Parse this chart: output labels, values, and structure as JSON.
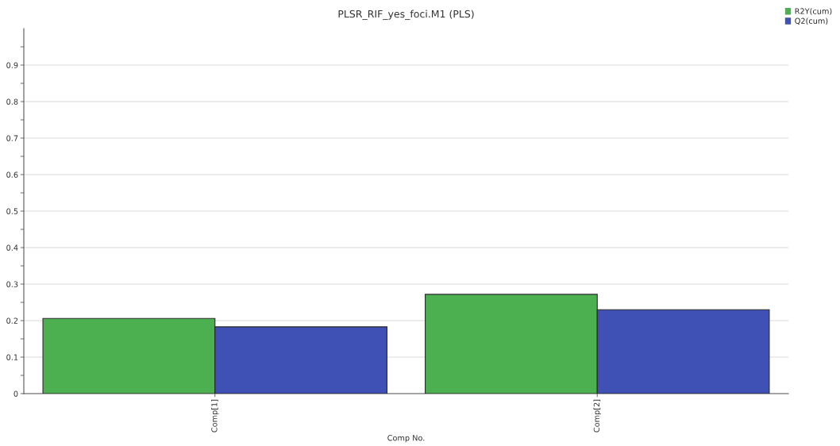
{
  "chart_data": {
    "type": "bar",
    "title": "PLSR_RIF_yes_foci.M1 (PLS)",
    "xlabel": "Comp No.",
    "categories": [
      "Comp[1]",
      "Comp[2]"
    ],
    "series": [
      {
        "name": "R2Y(cum)",
        "color": "#4caf50",
        "values": [
          0.206,
          0.272
        ]
      },
      {
        "name": "Q2(cum)",
        "color": "#3f51b5",
        "values": [
          0.183,
          0.23
        ]
      }
    ],
    "ylim": [
      0,
      1.0
    ],
    "yticks": [
      0,
      {
        "value": 0.05,
        "label": null
      },
      0.1,
      {
        "value": 0.15,
        "label": null
      },
      0.2,
      {
        "value": 0.25,
        "label": null
      },
      0.3,
      {
        "value": 0.35,
        "label": null
      },
      0.4,
      {
        "value": 0.45,
        "label": null
      },
      0.5,
      {
        "value": 0.55,
        "label": null
      },
      0.6,
      {
        "value": 0.65,
        "label": null
      },
      0.7,
      {
        "value": 0.75,
        "label": null
      },
      0.8,
      {
        "value": 0.85,
        "label": null
      },
      0.9,
      {
        "value": 0.95,
        "label": null
      }
    ],
    "grid": "y",
    "legend": "top right"
  }
}
